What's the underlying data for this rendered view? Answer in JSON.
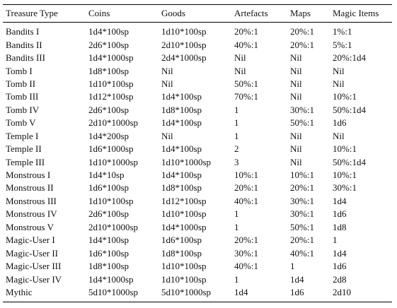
{
  "table": {
    "header": [
      "Treasure Type",
      "Coins",
      "Goods",
      "Artefacts",
      "Maps",
      "Magic Items"
    ],
    "rows": [
      [
        "Bandits I",
        "1d4*100sp",
        "1d10*100sp",
        "20%:1",
        "20%:1",
        "1%:1"
      ],
      [
        "Bandits II",
        "2d6*100sp",
        "2d10*100sp",
        "40%:1",
        "20%:1",
        "5%:1"
      ],
      [
        "Bandits III",
        "1d4*1000sp",
        "2d4*1000sp",
        "Nil",
        "Nil",
        "20%:1d4"
      ],
      [
        "Tomb I",
        "1d8*100sp",
        "Nil",
        "Nil",
        "Nil",
        "Nil"
      ],
      [
        "Tomb II",
        "1d10*100sp",
        "Nil",
        "50%:1",
        "Nil",
        "Nil"
      ],
      [
        "Tomb III",
        "1d12*100sp",
        "1d4*100sp",
        "70%:1",
        "Nil",
        "10%:1"
      ],
      [
        "Tomb IV",
        "2d6*100sp",
        "1d8*100sp",
        "1",
        "30%:1",
        "50%:1d4"
      ],
      [
        "Tomb V",
        "2d10*1000sp",
        "1d4*100sp",
        "1",
        "50%:1",
        "1d6"
      ],
      [
        "Temple I",
        "1d4*200sp",
        "Nil",
        "1",
        "Nil",
        "Nil"
      ],
      [
        "Temple II",
        "1d6*1000sp",
        "1d4*100sp",
        "2",
        "Nil",
        "10%:1"
      ],
      [
        "Temple III",
        "1d10*1000sp",
        "1d10*1000sp",
        "3",
        "Nil",
        "50%:1d4"
      ],
      [
        "Monstrous I",
        "1d4*10sp",
        "1d4*100sp",
        "10%:1",
        "10%:1",
        "10%:1"
      ],
      [
        "Monstrous II",
        "1d6*100sp",
        "1d8*100sp",
        "20%:1",
        "20%:1",
        "30%:1"
      ],
      [
        "Monstrous III",
        "1d10*100sp",
        "1d12*100sp",
        "40%:1",
        "30%:1",
        "1d4"
      ],
      [
        "Monstrous IV",
        "2d6*100sp",
        "1d10*100sp",
        "1",
        "30%:1",
        "1d6"
      ],
      [
        "Monstrous V",
        "2d10*1000sp",
        "1d4*1000sp",
        "1",
        "50%:1",
        "1d8"
      ],
      [
        "Magic-User I",
        "1d4*100sp",
        "1d6*100sp",
        "20%:1",
        "20%:1",
        "1"
      ],
      [
        "Magic-User II",
        "1d6*100sp",
        "1d8*100sp",
        "30%:1",
        "40%:1",
        "1d4"
      ],
      [
        "Magic-User III",
        "1d8*100sp",
        "1d10*100sp",
        "40%:1",
        "1",
        "1d6"
      ],
      [
        "Magic-User IV",
        "1d4*1000sp",
        "1d10*100sp",
        "1",
        "1d4",
        "2d8"
      ],
      [
        "Mythic",
        "5d10*1000sp",
        "5d10*1000sp",
        "1d4",
        "1d6",
        "2d10"
      ]
    ]
  }
}
